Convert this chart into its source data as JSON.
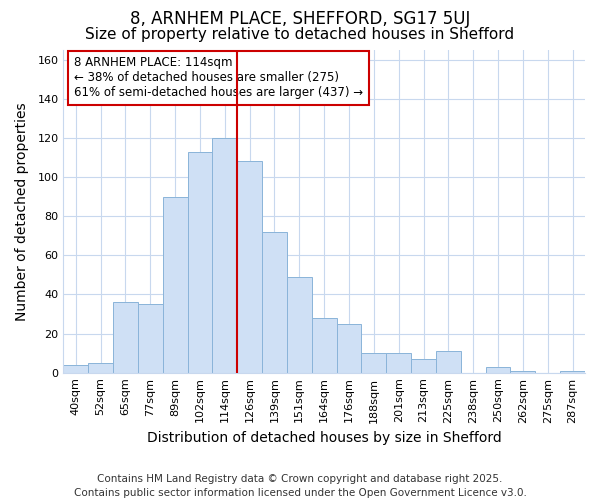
{
  "title1": "8, ARNHEM PLACE, SHEFFORD, SG17 5UJ",
  "title2": "Size of property relative to detached houses in Shefford",
  "xlabel": "Distribution of detached houses by size in Shefford",
  "ylabel": "Number of detached properties",
  "categories": [
    "40sqm",
    "52sqm",
    "65sqm",
    "77sqm",
    "89sqm",
    "102sqm",
    "114sqm",
    "126sqm",
    "139sqm",
    "151sqm",
    "164sqm",
    "176sqm",
    "188sqm",
    "201sqm",
    "213sqm",
    "225sqm",
    "238sqm",
    "250sqm",
    "262sqm",
    "275sqm",
    "287sqm"
  ],
  "values": [
    4,
    5,
    36,
    35,
    90,
    113,
    120,
    108,
    72,
    49,
    28,
    25,
    10,
    10,
    7,
    11,
    0,
    3,
    1,
    0,
    1
  ],
  "bar_color": "#cfe0f5",
  "bar_edge_color": "#8ab4d9",
  "vline_color": "#cc0000",
  "annotation_line1": "8 ARNHEM PLACE: 114sqm",
  "annotation_line2": "← 38% of detached houses are smaller (275)",
  "annotation_line3": "61% of semi-detached houses are larger (437) →",
  "annotation_box_color": "#ffffff",
  "annotation_box_edge": "#cc0000",
  "ylim": [
    0,
    165
  ],
  "yticks": [
    0,
    20,
    40,
    60,
    80,
    100,
    120,
    140,
    160
  ],
  "footer": "Contains HM Land Registry data © Crown copyright and database right 2025.\nContains public sector information licensed under the Open Government Licence v3.0.",
  "bg_color": "#ffffff",
  "plot_bg_color": "#ffffff",
  "grid_color": "#c8d8ee",
  "title_fontsize": 12,
  "subtitle_fontsize": 11,
  "axis_label_fontsize": 10,
  "tick_fontsize": 8,
  "footer_fontsize": 7.5,
  "annotation_fontsize": 8.5,
  "vline_bar_index": 6
}
